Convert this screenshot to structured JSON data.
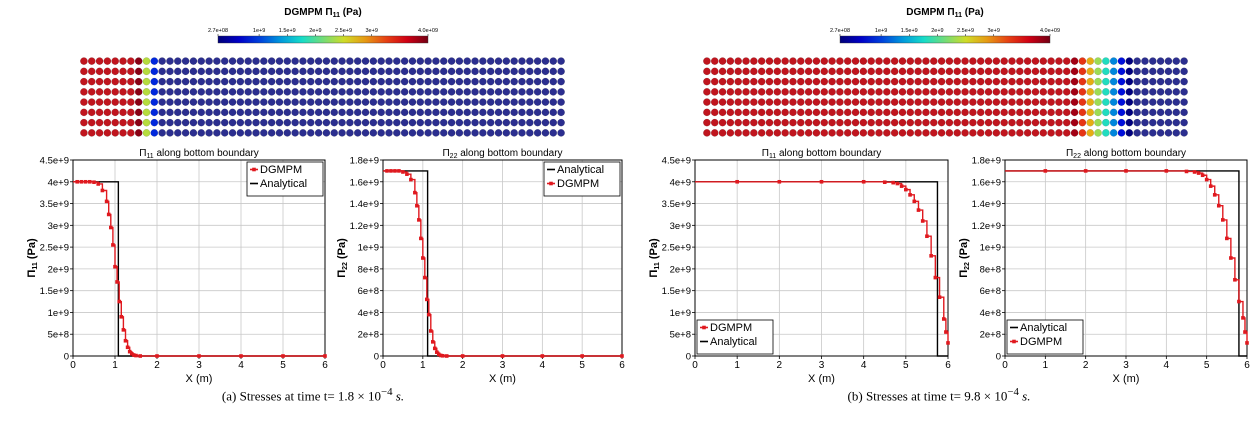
{
  "panels": [
    {
      "caption_text": "(a) Stresses at time t= ",
      "caption_math": "1.8 × 10",
      "caption_exp": "−4",
      "caption_unit": " s.",
      "colorbar": {
        "title": "DGMPM Π",
        "title_sub": "11",
        "title_unit": " (Pa)",
        "ticks": [
          "2.7e+08",
          "1e+9",
          "1.5e+9",
          "2e+9",
          "2.5e+9",
          "3e+9",
          "4.0e+09"
        ],
        "tick_values": [
          270000000,
          1000000000,
          1500000000,
          2000000000,
          2500000000,
          3000000000,
          4000000000
        ],
        "range": [
          270000000,
          4000000000
        ]
      },
      "particles": {
        "rows": 8,
        "cols": 62,
        "front": 0.14,
        "band": 0.04,
        "high_color": "#c0151e",
        "low_color": "#2b2e8f"
      }
    },
    {
      "caption_text": "(b) Stresses at time t= ",
      "caption_math": "9.8 × 10",
      "caption_exp": "−4",
      "caption_unit": " s.",
      "colorbar": {
        "title": "DGMPM Π",
        "title_sub": "11",
        "title_unit": " (Pa)",
        "ticks": [
          "2.7e+08",
          "1e+9",
          "1.5e+9",
          "2e+9",
          "2.5e+9",
          "3e+9",
          "4.0e+09"
        ],
        "tick_values": [
          270000000,
          1000000000,
          1500000000,
          2000000000,
          2500000000,
          3000000000,
          4000000000
        ],
        "range": [
          270000000,
          4000000000
        ]
      },
      "particles": {
        "rows": 8,
        "cols": 62,
        "front": 0.82,
        "band": 0.12,
        "high_color": "#c0151e",
        "low_color": "#2b2e8f"
      }
    }
  ],
  "chart_data": [
    {
      "type": "line",
      "title": "Π",
      "title_sub": "11",
      "title_rest": " along bottom boundary",
      "xlabel": "X (m)",
      "ylabel": "Π",
      "ylabel_sub": "11",
      "ylabel_unit": " (Pa)",
      "xlim": [
        0,
        6
      ],
      "ylim": [
        0,
        4500000000
      ],
      "xticks": [
        "0",
        "1",
        "2",
        "3",
        "4",
        "5",
        "6"
      ],
      "yticks": [
        "0",
        "5e+8",
        "1e+9",
        "1.5e+9",
        "2e+9",
        "2.5e+9",
        "3e+9",
        "3.5e+9",
        "4e+9",
        "4.5e+9"
      ],
      "grid": true,
      "legend_position": "top-right",
      "legend_order": [
        "DGMPM",
        "Analytical"
      ],
      "series": [
        {
          "name": "Analytical",
          "color": "#000000",
          "markers": false,
          "step": false,
          "x": [
            0,
            1.08,
            1.08,
            6
          ],
          "y": [
            4000000000,
            4000000000,
            0,
            0
          ]
        },
        {
          "name": "DGMPM",
          "color": "#e0191f",
          "markers": true,
          "step": true,
          "x": [
            0,
            0.1,
            0.2,
            0.3,
            0.4,
            0.5,
            0.6,
            0.7,
            0.8,
            0.85,
            0.9,
            0.95,
            1.0,
            1.05,
            1.1,
            1.15,
            1.2,
            1.25,
            1.3,
            1.35,
            1.4,
            1.45,
            1.5,
            1.6,
            2,
            3,
            4,
            5,
            6
          ],
          "y": [
            4000000000,
            4000000000,
            4000000000,
            4000000000,
            4000000000,
            3990000000,
            3950000000,
            3800000000,
            3550000000,
            3250000000,
            2950000000,
            2550000000,
            2050000000,
            1700000000,
            1250000000,
            900000000,
            600000000,
            350000000,
            200000000,
            100000000,
            50000000,
            20000000,
            10000000,
            0,
            0,
            0,
            0,
            0,
            0
          ]
        }
      ]
    },
    {
      "type": "line",
      "title": "Π",
      "title_sub": "22",
      "title_rest": " along bottom boundary",
      "xlabel": "X (m)",
      "ylabel": "Π",
      "ylabel_sub": "22",
      "ylabel_unit": " (Pa)",
      "xlim": [
        0,
        6
      ],
      "ylim": [
        0,
        1800000000
      ],
      "xticks": [
        "0",
        "1",
        "2",
        "3",
        "4",
        "5",
        "6"
      ],
      "yticks": [
        "0",
        "2e+8",
        "4e+8",
        "6e+8",
        "8e+8",
        "1e+9",
        "1.2e+9",
        "1.4e+9",
        "1.6e+9",
        "1.8e+9"
      ],
      "grid": true,
      "legend_position": "top-right",
      "legend_order": [
        "Analytical",
        "DGMPM"
      ],
      "series": [
        {
          "name": "Analytical",
          "color": "#000000",
          "markers": false,
          "step": false,
          "x": [
            0,
            1.12,
            1.12,
            6
          ],
          "y": [
            1700000000,
            1700000000,
            0,
            0
          ]
        },
        {
          "name": "DGMPM",
          "color": "#e0191f",
          "markers": true,
          "step": true,
          "x": [
            0,
            0.1,
            0.2,
            0.3,
            0.4,
            0.5,
            0.6,
            0.7,
            0.8,
            0.85,
            0.9,
            0.95,
            1.0,
            1.05,
            1.1,
            1.15,
            1.2,
            1.25,
            1.3,
            1.35,
            1.4,
            1.45,
            1.5,
            1.6,
            2,
            3,
            4,
            5,
            6
          ],
          "y": [
            1700000000,
            1700000000,
            1700000000,
            1700000000,
            1700000000,
            1690000000,
            1670000000,
            1620000000,
            1500000000,
            1380000000,
            1250000000,
            1080000000,
            900000000,
            720000000,
            520000000,
            380000000,
            230000000,
            130000000,
            70000000,
            35000000,
            15000000,
            5000000,
            2000000,
            0,
            0,
            0,
            0,
            0,
            0
          ]
        }
      ]
    },
    {
      "type": "line",
      "title": "Π",
      "title_sub": "11",
      "title_rest": " along bottom boundary",
      "xlabel": "X (m)",
      "ylabel": "Π",
      "ylabel_sub": "11",
      "ylabel_unit": " (Pa)",
      "xlim": [
        0,
        6
      ],
      "ylim": [
        0,
        4500000000
      ],
      "xticks": [
        "0",
        "1",
        "2",
        "3",
        "4",
        "5",
        "6"
      ],
      "yticks": [
        "0",
        "5e+8",
        "1e+9",
        "1.5e+9",
        "2e+9",
        "2.5e+9",
        "3e+9",
        "3.5e+9",
        "4e+9",
        "4.5e+9"
      ],
      "grid": true,
      "legend_position": "bottom-left",
      "legend_order": [
        "DGMPM",
        "Analytical"
      ],
      "series": [
        {
          "name": "Analytical",
          "color": "#000000",
          "markers": false,
          "step": false,
          "x": [
            0,
            5.75,
            5.75,
            6
          ],
          "y": [
            4000000000,
            4000000000,
            0,
            0
          ]
        },
        {
          "name": "DGMPM",
          "color": "#e0191f",
          "markers": true,
          "step": true,
          "x": [
            0,
            1,
            2,
            3,
            4,
            4.5,
            4.7,
            4.8,
            4.9,
            5.0,
            5.1,
            5.2,
            5.3,
            5.4,
            5.5,
            5.6,
            5.7,
            5.8,
            5.9,
            5.95,
            6.0
          ],
          "y": [
            4000000000,
            4000000000,
            4000000000,
            4000000000,
            4000000000,
            3990000000,
            3980000000,
            3960000000,
            3900000000,
            3820000000,
            3700000000,
            3550000000,
            3350000000,
            3100000000,
            2750000000,
            2300000000,
            1800000000,
            1350000000,
            850000000,
            550000000,
            300000000
          ]
        }
      ]
    },
    {
      "type": "line",
      "title": "Π",
      "title_sub": "22",
      "title_rest": " along bottom boundary",
      "xlabel": "X (m)",
      "ylabel": "Π",
      "ylabel_sub": "22",
      "ylabel_unit": " (Pa)",
      "xlim": [
        0,
        6
      ],
      "ylim": [
        0,
        1800000000
      ],
      "xticks": [
        "0",
        "1",
        "2",
        "3",
        "4",
        "5",
        "6"
      ],
      "yticks": [
        "0",
        "2e+8",
        "4e+8",
        "6e+8",
        "8e+8",
        "1e+9",
        "1.2e+9",
        "1.4e+9",
        "1.6e+9",
        "1.8e+9"
      ],
      "grid": true,
      "legend_position": "bottom-left",
      "legend_order": [
        "Analytical",
        "DGMPM"
      ],
      "series": [
        {
          "name": "Analytical",
          "color": "#000000",
          "markers": false,
          "step": false,
          "x": [
            0,
            5.8,
            5.8,
            6
          ],
          "y": [
            1700000000,
            1700000000,
            0,
            0
          ]
        },
        {
          "name": "DGMPM",
          "color": "#e0191f",
          "markers": true,
          "step": true,
          "x": [
            0,
            1,
            2,
            3,
            4,
            4.5,
            4.7,
            4.8,
            4.9,
            5.0,
            5.1,
            5.2,
            5.3,
            5.4,
            5.5,
            5.6,
            5.7,
            5.8,
            5.9,
            5.95,
            6.0
          ],
          "y": [
            1700000000,
            1700000000,
            1700000000,
            1700000000,
            1700000000,
            1695000000,
            1690000000,
            1680000000,
            1660000000,
            1620000000,
            1560000000,
            1480000000,
            1380000000,
            1250000000,
            1080000000,
            900000000,
            700000000,
            500000000,
            350000000,
            220000000,
            120000000
          ]
        }
      ]
    }
  ]
}
